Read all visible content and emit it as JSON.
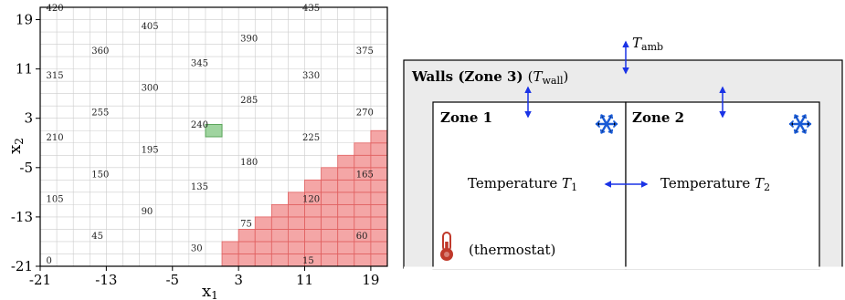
{
  "grid": {
    "x_label": "x",
    "x_label_sub": "1",
    "y_label": "x",
    "y_label_sub": "2",
    "x_ticks": [
      "-21",
      "-13",
      "-5",
      "3",
      "11",
      "19"
    ],
    "y_ticks": [
      "19",
      "11",
      "3",
      "-5",
      "-13",
      "-21"
    ],
    "x_tick_values": [
      -21,
      -13,
      -5,
      3,
      11,
      19
    ],
    "y_tick_values": [
      19,
      11,
      3,
      -5,
      -13,
      -21
    ],
    "range": [
      -21,
      21
    ],
    "cell_size": 2,
    "region_labels": [
      {
        "text": "420",
        "x": -20.5,
        "y": 20
      },
      {
        "text": "435",
        "x": 10.5,
        "y": 20
      },
      {
        "text": "405",
        "x": -9,
        "y": 17
      },
      {
        "text": "390",
        "x": 3,
        "y": 15
      },
      {
        "text": "360",
        "x": -15,
        "y": 13
      },
      {
        "text": "375",
        "x": 17,
        "y": 13
      },
      {
        "text": "345",
        "x": -3,
        "y": 11
      },
      {
        "text": "315",
        "x": -20.5,
        "y": 9
      },
      {
        "text": "330",
        "x": 10.5,
        "y": 9
      },
      {
        "text": "300",
        "x": -9,
        "y": 7
      },
      {
        "text": "285",
        "x": 3,
        "y": 5
      },
      {
        "text": "255",
        "x": -15,
        "y": 3
      },
      {
        "text": "270",
        "x": 17,
        "y": 3
      },
      {
        "text": "240",
        "x": -3,
        "y": 1
      },
      {
        "text": "210",
        "x": -20.5,
        "y": -1
      },
      {
        "text": "225",
        "x": 10.5,
        "y": -1
      },
      {
        "text": "195",
        "x": -9,
        "y": -3
      },
      {
        "text": "180",
        "x": 3,
        "y": -5
      },
      {
        "text": "150",
        "x": -15,
        "y": -7
      },
      {
        "text": "165",
        "x": 17,
        "y": -7
      },
      {
        "text": "135",
        "x": -3,
        "y": -9
      },
      {
        "text": "105",
        "x": -20.5,
        "y": -11
      },
      {
        "text": "120",
        "x": 10.5,
        "y": -11
      },
      {
        "text": "90",
        "x": -9,
        "y": -13
      },
      {
        "text": "75",
        "x": 3,
        "y": -15
      },
      {
        "text": "45",
        "x": -15,
        "y": -17
      },
      {
        "text": "60",
        "x": 17,
        "y": -17
      },
      {
        "text": "30",
        "x": -3,
        "y": -19
      },
      {
        "text": "0",
        "x": -20.5,
        "y": -21
      },
      {
        "text": "15",
        "x": 10.5,
        "y": -21
      }
    ],
    "green_cell": {
      "x0": -1,
      "y0": 0
    },
    "unsafe_region": "x2 < x1 - 20",
    "colors": {
      "unsafe": "#f4a6a6",
      "unsafe_edge": "#e06060",
      "goal": "#9fd49f",
      "goal_edge": "#5aa55a",
      "grid": "#cccccc"
    }
  },
  "diagram": {
    "walls_title": "Walls (Zone 3)",
    "walls_paren_open": "(",
    "walls_T": "T",
    "walls_T_sub": "wall",
    "walls_paren_close": ")",
    "amb_T": "T",
    "amb_sub": "amb",
    "zone1_title": "Zone 1",
    "zone2_title": "Zone 2",
    "temp1_text": "Temperature ",
    "temp1_T": "T",
    "temp1_sub": "1",
    "temp2_text": "Temperature ",
    "temp2_T": "T",
    "temp2_sub": "2",
    "thermostat": "(thermostat)",
    "snowflake_icon_1": "snowflake-icon",
    "snowflake_icon_2": "snowflake-icon",
    "thermometer_icon": "thermometer-icon",
    "colors": {
      "arrow": "#1a33e6",
      "snow": "#1a5bd6",
      "thermostat": "#c0392b",
      "walls": "#ebebeb"
    }
  }
}
